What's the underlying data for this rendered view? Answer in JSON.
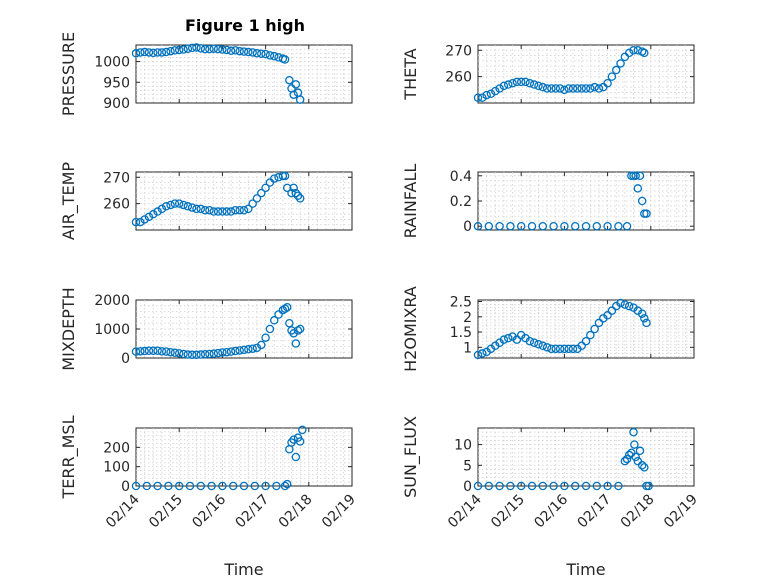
{
  "figure": {
    "title": "Figure 1 high",
    "marker_color": "#0072bd",
    "grid": true
  },
  "chart_data": [
    {
      "type": "scatter",
      "ylabel": "PRESSURE",
      "xlabel": "",
      "xlim": [
        0,
        5
      ],
      "ylim": [
        900,
        1040
      ],
      "yticks": [
        900,
        950,
        1000
      ],
      "ytick_labels": [
        "900",
        "950",
        "1000"
      ],
      "xticks": [
        0,
        1,
        2,
        3,
        4,
        5
      ],
      "x": [
        0.0,
        0.1,
        0.2,
        0.3,
        0.4,
        0.5,
        0.6,
        0.7,
        0.8,
        0.9,
        1.0,
        1.1,
        1.2,
        1.3,
        1.4,
        1.5,
        1.6,
        1.7,
        1.8,
        1.9,
        2.0,
        2.1,
        2.2,
        2.3,
        2.4,
        2.5,
        2.6,
        2.7,
        2.8,
        2.9,
        3.0,
        3.1,
        3.2,
        3.3,
        3.4,
        3.45,
        3.55,
        3.6,
        3.65,
        3.7,
        3.75,
        3.8
      ],
      "y": [
        1020,
        1022,
        1023,
        1022,
        1021,
        1022,
        1022,
        1023,
        1025,
        1027,
        1028,
        1029,
        1031,
        1033,
        1034,
        1032,
        1030,
        1030,
        1031,
        1030,
        1029,
        1028,
        1026,
        1027,
        1025,
        1024,
        1023,
        1022,
        1020,
        1019,
        1018,
        1015,
        1013,
        1010,
        1007,
        1005,
        955,
        935,
        920,
        945,
        925,
        908
      ]
    },
    {
      "type": "scatter",
      "ylabel": "THETA",
      "xlabel": "",
      "xlim": [
        0,
        5
      ],
      "ylim": [
        250,
        272
      ],
      "yticks": [
        260,
        270
      ],
      "ytick_labels": [
        "260",
        "270"
      ],
      "xticks": [
        0,
        1,
        2,
        3,
        4,
        5
      ],
      "x": [
        0.0,
        0.1,
        0.2,
        0.3,
        0.4,
        0.5,
        0.6,
        0.7,
        0.8,
        0.9,
        1.0,
        1.1,
        1.2,
        1.3,
        1.4,
        1.5,
        1.6,
        1.7,
        1.8,
        1.9,
        2.0,
        2.1,
        2.2,
        2.3,
        2.4,
        2.5,
        2.6,
        2.7,
        2.8,
        2.9,
        3.0,
        3.1,
        3.2,
        3.3,
        3.4,
        3.5,
        3.6,
        3.7,
        3.8,
        3.85
      ],
      "y": [
        252,
        252,
        253,
        253.5,
        254.5,
        255.5,
        256.5,
        257,
        257.5,
        258,
        258,
        258,
        257.5,
        257,
        256.5,
        256,
        255.5,
        255.5,
        255.5,
        255.5,
        255,
        255.5,
        255.5,
        255.5,
        255.5,
        255.5,
        255.5,
        256,
        255.5,
        256,
        257.5,
        260,
        262.5,
        265,
        267.5,
        269,
        270,
        270,
        269.5,
        269
      ]
    },
    {
      "type": "scatter",
      "ylabel": "AIR_TEMP",
      "xlabel": "",
      "xlim": [
        0,
        5
      ],
      "ylim": [
        250,
        272
      ],
      "yticks": [
        260,
        270
      ],
      "ytick_labels": [
        "260",
        "270"
      ],
      "xticks": [
        0,
        1,
        2,
        3,
        4,
        5
      ],
      "x": [
        0.0,
        0.1,
        0.2,
        0.3,
        0.4,
        0.5,
        0.6,
        0.7,
        0.8,
        0.9,
        1.0,
        1.1,
        1.2,
        1.3,
        1.4,
        1.5,
        1.6,
        1.7,
        1.8,
        1.9,
        2.0,
        2.1,
        2.2,
        2.3,
        2.4,
        2.5,
        2.6,
        2.7,
        2.8,
        2.9,
        3.0,
        3.1,
        3.2,
        3.3,
        3.4,
        3.45,
        3.5,
        3.6,
        3.65,
        3.7,
        3.75,
        3.8
      ],
      "y": [
        253,
        253,
        254,
        255,
        256,
        257,
        258,
        259,
        259.5,
        260,
        260,
        259.5,
        259,
        258.5,
        258,
        258,
        257.5,
        257.5,
        257,
        257,
        257,
        257,
        257,
        257.5,
        257.5,
        257.5,
        258,
        260,
        262,
        264,
        266,
        268,
        269.5,
        270,
        270.5,
        270.5,
        266,
        264,
        266,
        264,
        263,
        262
      ]
    },
    {
      "type": "scatter",
      "ylabel": "RAINFALL",
      "xlabel": "",
      "xlim": [
        0,
        5
      ],
      "ylim": [
        -0.03,
        0.43
      ],
      "yticks": [
        0,
        0.2,
        0.4
      ],
      "ytick_labels": [
        "0",
        "0.2",
        "0.4"
      ],
      "xticks": [
        0,
        1,
        2,
        3,
        4,
        5
      ],
      "x": [
        0.0,
        0.25,
        0.5,
        0.75,
        1.0,
        1.25,
        1.5,
        1.75,
        2.0,
        2.25,
        2.5,
        2.75,
        3.0,
        3.25,
        3.45,
        3.55,
        3.6,
        3.65,
        3.7,
        3.75,
        3.8,
        3.85,
        3.9
      ],
      "y": [
        0,
        0,
        0,
        0,
        0,
        0,
        0,
        0,
        0,
        0,
        0,
        0,
        0,
        0,
        0,
        0.4,
        0.4,
        0.4,
        0.3,
        0.4,
        0.2,
        0.1,
        0.1
      ]
    },
    {
      "type": "scatter",
      "ylabel": "MIXDEPTH",
      "xlabel": "",
      "xlim": [
        0,
        5
      ],
      "ylim": [
        0,
        2000
      ],
      "yticks": [
        0,
        1000,
        2000
      ],
      "ytick_labels": [
        "0",
        "1000",
        "2000"
      ],
      "xticks": [
        0,
        1,
        2,
        3,
        4,
        5
      ],
      "x": [
        0.0,
        0.1,
        0.2,
        0.3,
        0.4,
        0.5,
        0.6,
        0.7,
        0.8,
        0.9,
        1.0,
        1.1,
        1.2,
        1.3,
        1.4,
        1.5,
        1.6,
        1.7,
        1.8,
        1.9,
        2.0,
        2.1,
        2.2,
        2.3,
        2.4,
        2.5,
        2.6,
        2.7,
        2.8,
        2.9,
        3.0,
        3.1,
        3.2,
        3.3,
        3.4,
        3.45,
        3.5,
        3.55,
        3.6,
        3.65,
        3.7,
        3.75,
        3.8
      ],
      "y": [
        220,
        230,
        240,
        250,
        250,
        250,
        230,
        220,
        200,
        180,
        160,
        140,
        120,
        110,
        110,
        120,
        130,
        140,
        150,
        170,
        190,
        200,
        220,
        240,
        260,
        280,
        300,
        320,
        350,
        450,
        700,
        1000,
        1300,
        1500,
        1650,
        1700,
        1750,
        1200,
        950,
        850,
        500,
        950,
        1000
      ]
    },
    {
      "type": "scatter",
      "ylabel": "H2OMIXRA",
      "xlabel": "",
      "xlim": [
        0,
        5
      ],
      "ylim": [
        0.65,
        2.55
      ],
      "yticks": [
        1,
        1.5,
        2,
        2.5
      ],
      "ytick_labels": [
        "1",
        "1.5",
        "2",
        "2.5"
      ],
      "xticks": [
        0,
        1,
        2,
        3,
        4,
        5
      ],
      "x": [
        0.0,
        0.1,
        0.2,
        0.3,
        0.4,
        0.5,
        0.6,
        0.7,
        0.8,
        0.9,
        1.0,
        1.1,
        1.2,
        1.3,
        1.4,
        1.5,
        1.6,
        1.7,
        1.8,
        1.9,
        2.0,
        2.1,
        2.2,
        2.3,
        2.4,
        2.5,
        2.6,
        2.7,
        2.8,
        2.9,
        3.0,
        3.1,
        3.2,
        3.3,
        3.4,
        3.5,
        3.6,
        3.7,
        3.8,
        3.85,
        3.9
      ],
      "y": [
        0.75,
        0.8,
        0.85,
        0.95,
        1.05,
        1.15,
        1.25,
        1.3,
        1.35,
        1.25,
        1.4,
        1.3,
        1.2,
        1.15,
        1.1,
        1.05,
        1.0,
        0.95,
        0.95,
        0.95,
        0.95,
        0.95,
        0.95,
        0.95,
        1.05,
        1.2,
        1.4,
        1.6,
        1.8,
        1.95,
        2.05,
        2.2,
        2.35,
        2.45,
        2.4,
        2.35,
        2.3,
        2.2,
        2.1,
        1.95,
        1.8
      ]
    },
    {
      "type": "scatter",
      "ylabel": "TERR_MSL",
      "xlabel": "Time",
      "xlim": [
        0,
        5
      ],
      "ylim": [
        0,
        300
      ],
      "yticks": [
        0,
        100,
        200
      ],
      "ytick_labels": [
        "0",
        "100",
        "200"
      ],
      "xticks": [
        0,
        1,
        2,
        3,
        4,
        5
      ],
      "xtick_labels": [
        "02/14",
        "02/15",
        "02/16",
        "02/17",
        "02/18",
        "02/19"
      ],
      "x": [
        0.0,
        0.25,
        0.5,
        0.75,
        1.0,
        1.25,
        1.5,
        1.75,
        2.0,
        2.25,
        2.5,
        2.75,
        3.0,
        3.25,
        3.45,
        3.5,
        3.55,
        3.6,
        3.65,
        3.7,
        3.75,
        3.8,
        3.85
      ],
      "y": [
        0,
        0,
        0,
        0,
        0,
        0,
        0,
        0,
        0,
        0,
        0,
        0,
        0,
        0,
        0,
        10,
        190,
        225,
        240,
        150,
        250,
        230,
        290
      ]
    },
    {
      "type": "scatter",
      "ylabel": "SUN_FLUX",
      "xlabel": "Time",
      "xlim": [
        0,
        5
      ],
      "ylim": [
        0,
        14
      ],
      "yticks": [
        0,
        5,
        10
      ],
      "ytick_labels": [
        "0",
        "5",
        "10"
      ],
      "xticks": [
        0,
        1,
        2,
        3,
        4,
        5
      ],
      "xtick_labels": [
        "02/14",
        "02/15",
        "02/16",
        "02/17",
        "02/18",
        "02/19"
      ],
      "x": [
        0.0,
        0.25,
        0.5,
        0.75,
        1.0,
        1.25,
        1.5,
        1.75,
        2.0,
        2.25,
        2.5,
        2.75,
        3.0,
        3.25,
        3.4,
        3.45,
        3.5,
        3.55,
        3.6,
        3.62,
        3.65,
        3.7,
        3.75,
        3.8,
        3.85,
        3.9,
        3.95
      ],
      "y": [
        0,
        0,
        0,
        0,
        0,
        0,
        0,
        0,
        0,
        0,
        0,
        0,
        0,
        0,
        6,
        6.5,
        7.5,
        8,
        13,
        10,
        7,
        6,
        8.5,
        5,
        4.5,
        0,
        0
      ]
    }
  ]
}
